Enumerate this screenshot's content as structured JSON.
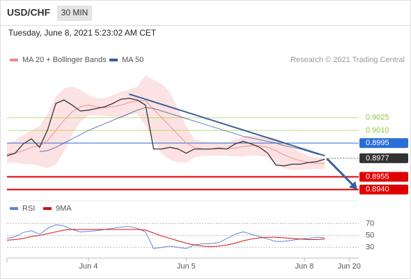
{
  "header": {
    "symbol": "USD/CHF",
    "interval": "30 MIN",
    "timestamp": "Tuesday, June 8, 2021 5:23:02 AM CET",
    "credit": "Research © 2021 Trading Central"
  },
  "chart_data": [
    {
      "type": "line",
      "name": "price",
      "x": [
        0,
        1,
        2,
        3,
        4,
        5,
        6,
        7,
        8,
        9,
        10,
        11,
        12,
        13,
        14,
        15,
        16,
        17,
        18,
        19,
        20,
        21,
        22,
        23,
        24,
        25,
        26,
        27,
        28,
        29,
        30,
        31,
        32,
        33,
        34,
        35,
        36,
        37,
        38,
        39
      ],
      "xlim": [
        0,
        43
      ],
      "xticks": [
        {
          "value": 10,
          "label": "Jun 4"
        },
        {
          "value": 22,
          "label": "Jun 5"
        },
        {
          "value": 36.5,
          "label": "Jun 8"
        },
        {
          "value": 42,
          "label": "Jun 20"
        }
      ],
      "ylim": [
        0.8929,
        0.9086
      ],
      "price": {
        "color": "#333333",
        "values": [
          0.898,
          0.8983,
          0.8994,
          0.9,
          0.899,
          0.9011,
          0.9042,
          0.9046,
          0.904,
          0.9033,
          0.9034,
          0.9036,
          0.9038,
          0.9042,
          0.9047,
          0.9048,
          0.9046,
          0.904,
          0.8988,
          0.8988,
          0.899,
          0.8988,
          0.8983,
          0.8988,
          0.8988,
          0.8988,
          0.8989,
          0.8988,
          0.8994,
          0.8997,
          0.8994,
          0.899,
          0.8983,
          0.8969,
          0.8968,
          0.897,
          0.897,
          0.8972,
          0.8973,
          0.8976
        ]
      },
      "series": [
        {
          "name": "MA 20 + Bollinger Bands",
          "color": "#f08a8a",
          "band_color": "#fbd5d5",
          "values": [
            0.8982,
            0.8983,
            0.8986,
            0.899,
            0.8992,
            0.8998,
            0.901,
            0.9022,
            0.9032,
            0.9038,
            0.904,
            0.9038,
            0.9037,
            0.9038,
            0.904,
            0.9043,
            0.9045,
            0.9045,
            0.9035,
            0.9025,
            0.9015,
            0.9005,
            0.8995,
            0.899,
            0.8988,
            0.8988,
            0.8988,
            0.8988,
            0.8989,
            0.8991,
            0.8992,
            0.8992,
            0.899,
            0.8986,
            0.8981,
            0.8977,
            0.8974,
            0.8972,
            0.8971,
            0.8971
          ],
          "upper": [
            0.8995,
            0.8998,
            0.9005,
            0.901,
            0.9015,
            0.903,
            0.905,
            0.906,
            0.9062,
            0.9058,
            0.9052,
            0.9048,
            0.9048,
            0.9052,
            0.9056,
            0.9058,
            0.9062,
            0.9075,
            0.907,
            0.9065,
            0.9055,
            0.9035,
            0.9015,
            0.9,
            0.8997,
            0.8996,
            0.8996,
            0.8996,
            0.8999,
            0.9003,
            0.9004,
            0.9003,
            0.9002,
            0.9001,
            0.8996,
            0.899,
            0.8984,
            0.898,
            0.8978,
            0.8977
          ],
          "lower": [
            0.8972,
            0.8972,
            0.897,
            0.897,
            0.8968,
            0.8965,
            0.897,
            0.8985,
            0.9005,
            0.902,
            0.9028,
            0.9028,
            0.9027,
            0.9026,
            0.9025,
            0.9028,
            0.903,
            0.9015,
            0.8998,
            0.8982,
            0.8975,
            0.8972,
            0.8972,
            0.8978,
            0.898,
            0.898,
            0.898,
            0.898,
            0.8979,
            0.8979,
            0.898,
            0.898,
            0.8978,
            0.897,
            0.8965,
            0.8963,
            0.8963,
            0.8964,
            0.8964,
            0.8965
          ]
        },
        {
          "name": "MA 50",
          "color": "#3a5f9a",
          "values": [
            null,
            null,
            null,
            null,
            0.8985,
            0.8986,
            0.899,
            0.8995,
            0.9,
            0.9005,
            0.901,
            0.9014,
            0.9018,
            0.9022,
            0.9026,
            0.903,
            0.9034,
            0.9037,
            0.9036,
            0.9033,
            0.903,
            0.9027,
            0.9024,
            0.9021,
            0.9018,
            0.9015,
            0.9012,
            0.9009,
            0.9006,
            0.9003,
            0.9001,
            0.8999,
            0.8997,
            0.8995,
            0.8992,
            0.899,
            0.8988,
            0.8985,
            0.8982,
            0.898
          ]
        }
      ],
      "trendline": {
        "color": "#3a5f9a",
        "x": [
          15,
          39,
          43
        ],
        "values": [
          0.9053,
          0.898,
          0.894
        ]
      },
      "levels": [
        {
          "value": 0.9025,
          "label": "0.9025",
          "color": "#8cc63f",
          "style": "text"
        },
        {
          "value": 0.901,
          "label": "0.9010",
          "color": "#8cc63f",
          "style": "text"
        },
        {
          "value": 0.8995,
          "label": "0.8995",
          "color": "#2a6ed8",
          "style": "box"
        },
        {
          "value": 0.8977,
          "label": "0.8977",
          "color": "#333333",
          "style": "current"
        },
        {
          "value": 0.8955,
          "label": "0.8955",
          "color": "#e00000",
          "style": "box"
        },
        {
          "value": 0.894,
          "label": "0.8940",
          "color": "#e00000",
          "style": "box"
        }
      ]
    },
    {
      "type": "line",
      "name": "rsi",
      "ylim": [
        12,
        94
      ],
      "yticks": [
        30,
        50,
        70
      ],
      "grid": true,
      "series": [
        {
          "name": "RSI",
          "color": "#5b86d6",
          "values": [
            45,
            48,
            55,
            58,
            52,
            62,
            68,
            66,
            60,
            56,
            57,
            58,
            60,
            62,
            64,
            65,
            62,
            56,
            28,
            30,
            32,
            30,
            28,
            34,
            36,
            36,
            38,
            45,
            52,
            56,
            52,
            48,
            44,
            40,
            40,
            42,
            44,
            45,
            47,
            46
          ]
        },
        {
          "name": "9MA",
          "color": "#d01010",
          "values": [
            42,
            43,
            45,
            48,
            50,
            53,
            56,
            59,
            60,
            60,
            60,
            60,
            60,
            60,
            60,
            60,
            60,
            59,
            54,
            49,
            45,
            41,
            37,
            34,
            32,
            31,
            32,
            34,
            37,
            41,
            44,
            46,
            47,
            47,
            46,
            45,
            44,
            43,
            43,
            44
          ]
        }
      ]
    }
  ]
}
